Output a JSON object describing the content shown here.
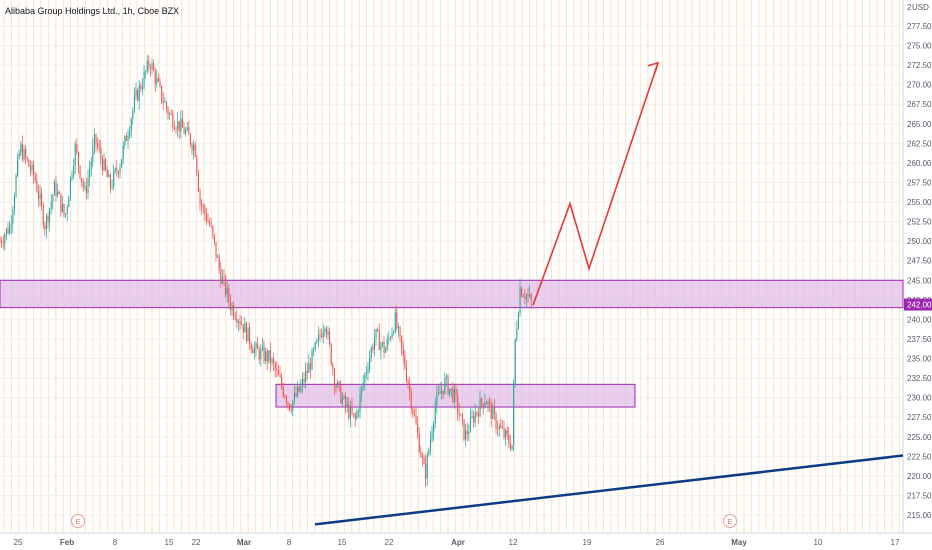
{
  "chart_data": {
    "type": "candlestick",
    "title": "Alibaba Group Holdings Ltd., 1h, Cboe BZX",
    "currency": "USD",
    "last_price": "242.00",
    "y_ticks": [
      215.0,
      217.5,
      220.0,
      222.5,
      225.0,
      227.5,
      230.0,
      232.5,
      235.0,
      237.5,
      240.0,
      242.5,
      245.0,
      247.5,
      250.0,
      252.5,
      255.0,
      257.5,
      260.0,
      262.5,
      265.0,
      267.5,
      270.0,
      272.5,
      275.0,
      277.5
    ],
    "y_top_label": "2",
    "x_tick_labels": [
      "25",
      "Feb",
      "8",
      "15",
      "22",
      "Mar",
      "8",
      "15",
      "22",
      "Apr",
      "12",
      "19",
      "26",
      "May",
      "10",
      "17"
    ],
    "earnings_marker": "E",
    "zones": [
      {
        "from": 241.5,
        "to": 245.0,
        "color": "#e1bee7",
        "border": "#9c27b0"
      },
      {
        "from": 228.8,
        "to": 231.7,
        "color": "#e1bee7",
        "border": "#9c27b0"
      }
    ],
    "projection_path": [
      241.8,
      254.8,
      246.5,
      272.8
    ],
    "trendline": [
      213.8,
      222.6
    ],
    "colors": {
      "up": "#26a69a",
      "down": "#ef5350",
      "projection": "#e53935",
      "trendline": "#0d3b85",
      "price_label": "#9c27b0"
    }
  }
}
